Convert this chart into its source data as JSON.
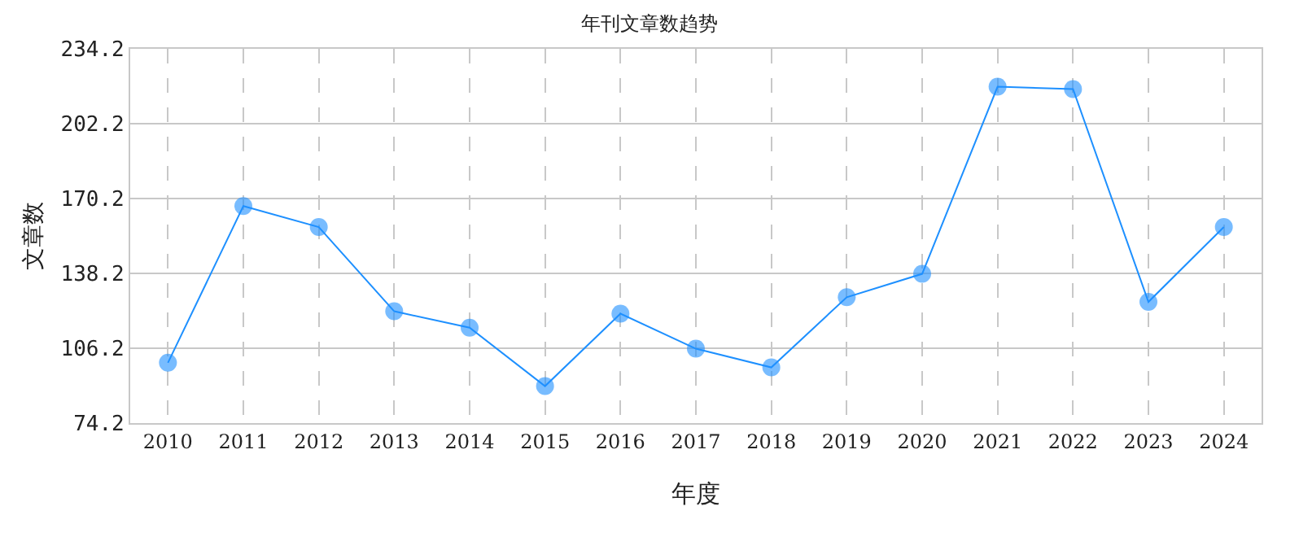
{
  "chart_data": {
    "type": "line",
    "title": "年刊文章数趋势",
    "xlabel": "年度",
    "ylabel": "文章数",
    "categories": [
      "2010",
      "2011",
      "2012",
      "2013",
      "2014",
      "2015",
      "2016",
      "2017",
      "2018",
      "2019",
      "2020",
      "2021",
      "2022",
      "2023",
      "2024"
    ],
    "series": [
      {
        "color": "#1e90ff",
        "values": [
          100,
          167,
          158,
          122,
          115,
          90,
          121,
          106,
          98,
          128,
          138,
          218,
          217,
          126,
          158
        ]
      }
    ],
    "ylim": [
      74.2,
      234.2
    ],
    "yticks": [
      {
        "value": 74.2,
        "label": "74.2"
      },
      {
        "value": 106.2,
        "label": "106.2"
      },
      {
        "value": 138.2,
        "label": "138.2"
      },
      {
        "value": 170.2,
        "label": "170.2"
      },
      {
        "value": 202.2,
        "label": "202.2"
      },
      {
        "value": 234.2,
        "label": "234.2"
      }
    ],
    "grid": true,
    "marker": "circle",
    "line_style": "solid",
    "legend": false
  }
}
